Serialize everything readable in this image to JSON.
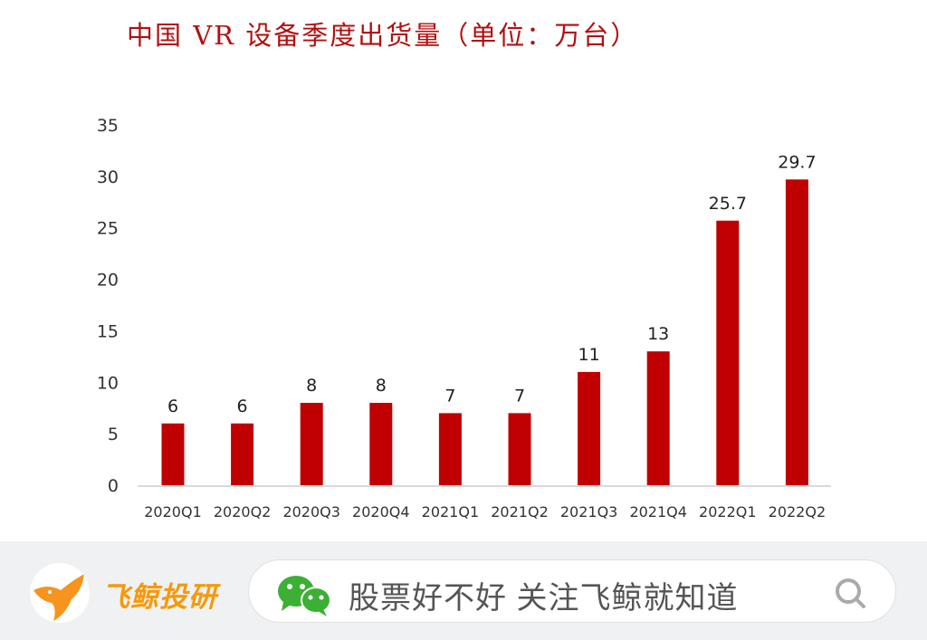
{
  "chart_data": {
    "type": "bar",
    "title": "中国 VR 设备季度出货量（单位：万台）",
    "categories": [
      "2020Q1",
      "2020Q2",
      "2020Q3",
      "2020Q4",
      "2021Q1",
      "2021Q2",
      "2021Q3",
      "2021Q4",
      "2022Q1",
      "2022Q2"
    ],
    "values": [
      6,
      6,
      8,
      8,
      7,
      7,
      11,
      13,
      25.7,
      29.7
    ],
    "data_labels": [
      "6",
      "6",
      "8",
      "8",
      "7",
      "7",
      "11",
      "13",
      "25.7",
      "29.7"
    ],
    "ylim": [
      0,
      35
    ],
    "yticks": [
      "0",
      "5",
      "10",
      "15",
      "20",
      "25",
      "30",
      "35"
    ],
    "xlabel": "",
    "ylabel": "",
    "grid": false,
    "bar_color": "#c00000"
  },
  "footer": {
    "brand": "飞鲸投研",
    "slogan": "股票好不好 关注飞鲸就知道",
    "icons": [
      "whale-logo-icon",
      "wechat-icon",
      "search-icon"
    ],
    "brand_color": "#f59a0b",
    "wechat_color": "#3cb034"
  }
}
